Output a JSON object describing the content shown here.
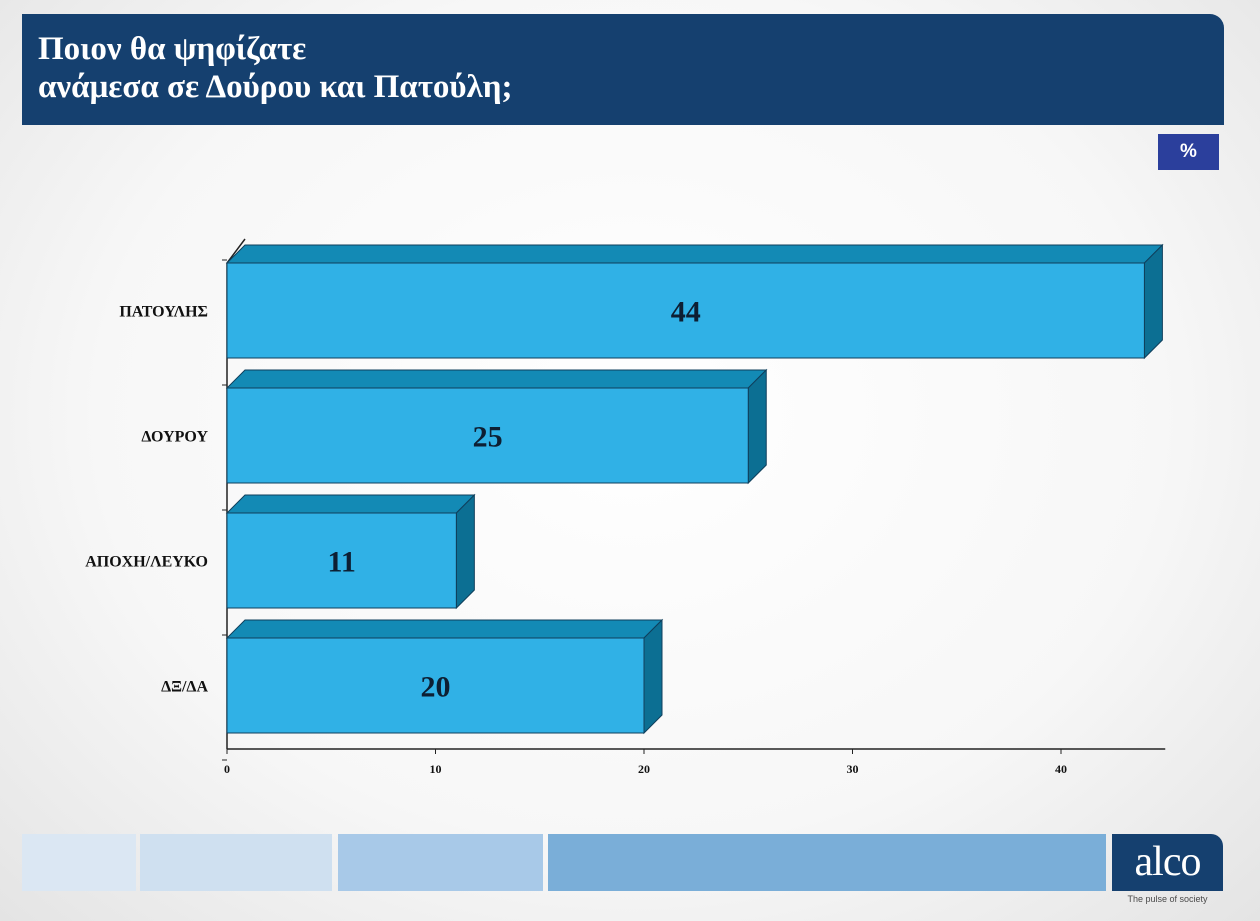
{
  "header": {
    "title_line1": "Ποιον θα ψηφίζατε",
    "title_line2": "ανάμεσα σε Δούρου και Πατούλη;"
  },
  "unit_badge": "%",
  "chart_data": {
    "type": "bar",
    "orientation": "horizontal",
    "style": "3d",
    "categories": [
      "ΠΑΤΟΥΛΗΣ",
      "ΔΟΥΡΟΥ",
      "ΑΠΟΧΗ/ΛΕΥΚΟ",
      "ΔΞ/ΔΑ"
    ],
    "values": [
      44,
      25,
      11,
      20
    ],
    "value_labels": [
      "44",
      "25",
      "11",
      "20"
    ],
    "title": "Ποιον θα ψηφίζατε ανάμεσα σε Δούρου και Πατούλη;",
    "xlabel": "",
    "ylabel": "",
    "unit": "%",
    "xlim": [
      0,
      44
    ],
    "xticks": [
      0,
      10,
      20,
      30,
      40
    ],
    "grid": false,
    "legend": "none",
    "colors": {
      "bar_front": "#30b1e6",
      "bar_top": "#138ab5",
      "bar_side": "#0c6f93",
      "bar_outline": "#0f3f5c",
      "axis": "#222222"
    }
  },
  "footer": {
    "logo_text": "alco",
    "logo_tagline": "The pulse of society"
  }
}
